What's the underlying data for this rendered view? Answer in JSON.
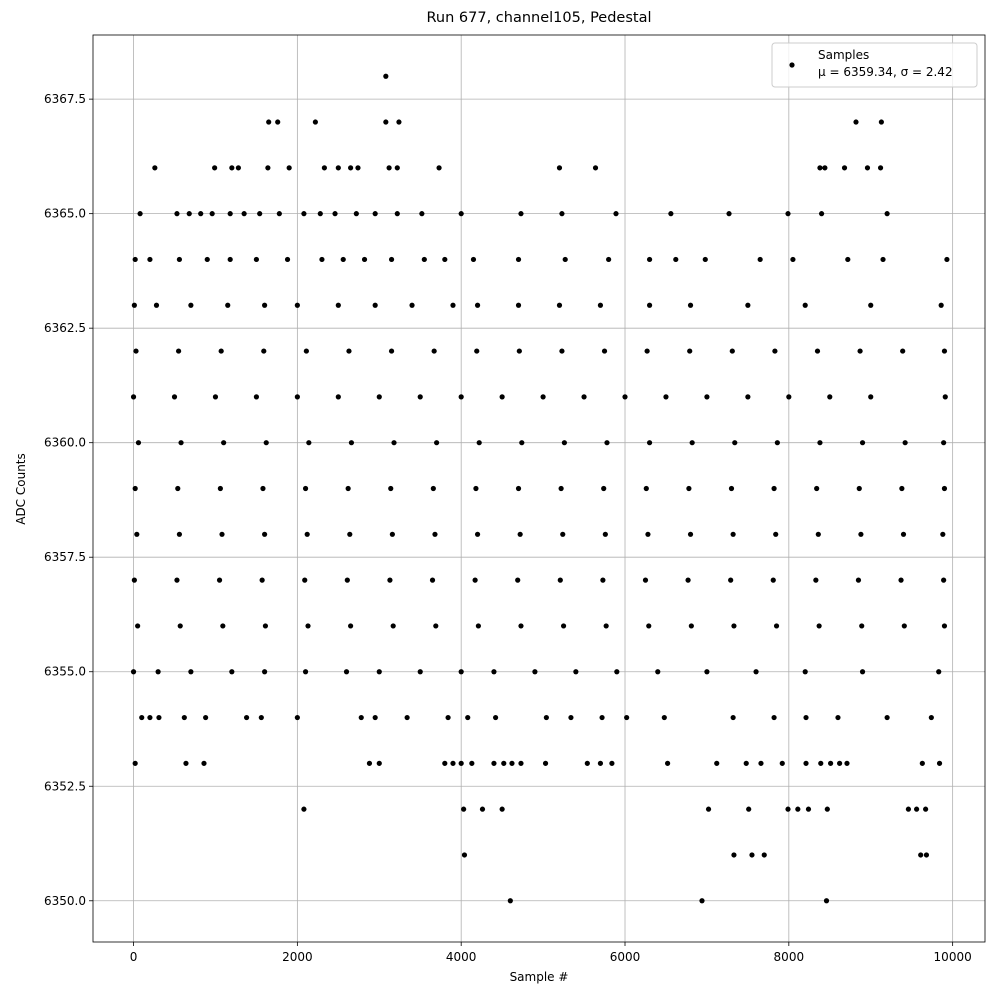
{
  "chart_data": {
    "type": "scatter",
    "title": "Run 677, channel105, Pedestal",
    "x_label": "Sample #",
    "y_label": "ADC Counts",
    "grid": true,
    "legend_position": "upper right",
    "xlim": [
      -495,
      10395
    ],
    "ylim": [
      6349.1,
      6368.9
    ],
    "xticks": [
      0,
      2000,
      4000,
      6000,
      8000,
      10000
    ],
    "yticks": [
      {
        "value": 6350,
        "label": "6350.0"
      },
      {
        "value": 6352.5,
        "label": "6352.5"
      },
      {
        "value": 6355,
        "label": "6355.0"
      },
      {
        "value": 6357.5,
        "label": "6357.5"
      },
      {
        "value": 6360,
        "label": "6360.0"
      },
      {
        "value": 6362.5,
        "label": "6362.5"
      },
      {
        "value": 6365,
        "label": "6365.0"
      },
      {
        "value": 6367.5,
        "label": "6367.5"
      }
    ],
    "series": [
      {
        "name": "Samples",
        "stats": "μ = 6359.34, σ = 2.42",
        "color": "#000000",
        "x": [
          3080,
          1650,
          1760,
          2220,
          3080,
          3240,
          8820,
          9130,
          260,
          990,
          1200,
          1280,
          1640,
          1900,
          2330,
          2500,
          2650,
          2740,
          3120,
          3220,
          3730,
          5200,
          5640,
          8380,
          8440,
          8680,
          8960,
          9120,
          80,
          530,
          680,
          820,
          960,
          1180,
          1350,
          1540,
          1780,
          2080,
          2280,
          2460,
          2720,
          2950,
          3220,
          3520,
          4000,
          4730,
          5230,
          5890,
          6560,
          7270,
          7990,
          8400,
          9200,
          20,
          200,
          560,
          900,
          1180,
          1500,
          1880,
          2300,
          2560,
          2820,
          3150,
          3550,
          3800,
          4150,
          4700,
          5270,
          5800,
          6300,
          6620,
          6980,
          7650,
          8050,
          8720,
          9150,
          9930,
          10,
          280,
          700,
          1150,
          1600,
          2000,
          2500,
          2950,
          3400,
          3900,
          4200,
          4700,
          5200,
          5700,
          6300,
          6800,
          7500,
          8200,
          9000,
          9860,
          30,
          550,
          1070,
          1590,
          2110,
          2630,
          3150,
          3670,
          4190,
          4710,
          5230,
          5750,
          6270,
          6790,
          7310,
          7830,
          8350,
          8870,
          9390,
          9900,
          0,
          500,
          1000,
          1500,
          2000,
          2500,
          3000,
          3500,
          4000,
          4500,
          5000,
          5500,
          6000,
          6500,
          7000,
          7500,
          8000,
          8500,
          9000,
          9910,
          60,
          580,
          1100,
          1620,
          2140,
          2660,
          3180,
          3700,
          4220,
          4740,
          5260,
          5780,
          6300,
          6820,
          7340,
          7860,
          8380,
          8900,
          9420,
          9890,
          20,
          540,
          1060,
          1580,
          2100,
          2620,
          3140,
          3660,
          4180,
          4700,
          5220,
          5740,
          6260,
          6780,
          7300,
          7820,
          8340,
          8860,
          9380,
          9900,
          40,
          560,
          1080,
          1600,
          2120,
          2640,
          3160,
          3680,
          4200,
          4720,
          5240,
          5760,
          6280,
          6800,
          7320,
          7840,
          8360,
          8880,
          9400,
          9880,
          10,
          530,
          1050,
          1570,
          2090,
          2610,
          3130,
          3650,
          4170,
          4690,
          5210,
          5730,
          6250,
          6770,
          7290,
          7810,
          8330,
          8850,
          9370,
          9890,
          50,
          570,
          1090,
          1610,
          2130,
          2650,
          3170,
          3690,
          4210,
          4730,
          5250,
          5770,
          6290,
          6810,
          7330,
          7850,
          8370,
          8890,
          9410,
          9900,
          0,
          300,
          700,
          1200,
          1600,
          2100,
          2600,
          3000,
          3500,
          4000,
          4400,
          4900,
          5400,
          5900,
          6400,
          7000,
          7600,
          8200,
          8900,
          9830,
          100,
          200,
          310,
          620,
          880,
          1380,
          1560,
          2000,
          2780,
          2950,
          3340,
          3840,
          4080,
          4420,
          5040,
          5340,
          5720,
          6020,
          6480,
          7320,
          7820,
          8210,
          8600,
          9200,
          9740,
          20,
          640,
          860,
          2880,
          3000,
          3800,
          3900,
          4000,
          4130,
          4400,
          4520,
          4620,
          4730,
          5030,
          5540,
          5700,
          5840,
          6520,
          7120,
          7480,
          7660,
          7920,
          8210,
          8390,
          8510,
          8620,
          8710,
          9630,
          9840,
          2080,
          4030,
          4260,
          4500,
          7020,
          7510,
          7990,
          8110,
          8240,
          8470,
          9460,
          9560,
          9670,
          4040,
          7330,
          7550,
          7700,
          9610,
          9680,
          4600,
          6940,
          8460
        ],
        "values": [
          6368,
          6367,
          6367,
          6367,
          6367,
          6367,
          6367,
          6367,
          6366,
          6366,
          6366,
          6366,
          6366,
          6366,
          6366,
          6366,
          6366,
          6366,
          6366,
          6366,
          6366,
          6366,
          6366,
          6366,
          6366,
          6366,
          6366,
          6366,
          6365,
          6365,
          6365,
          6365,
          6365,
          6365,
          6365,
          6365,
          6365,
          6365,
          6365,
          6365,
          6365,
          6365,
          6365,
          6365,
          6365,
          6365,
          6365,
          6365,
          6365,
          6365,
          6365,
          6365,
          6365,
          6364,
          6364,
          6364,
          6364,
          6364,
          6364,
          6364,
          6364,
          6364,
          6364,
          6364,
          6364,
          6364,
          6364,
          6364,
          6364,
          6364,
          6364,
          6364,
          6364,
          6364,
          6364,
          6364,
          6364,
          6364,
          6363,
          6363,
          6363,
          6363,
          6363,
          6363,
          6363,
          6363,
          6363,
          6363,
          6363,
          6363,
          6363,
          6363,
          6363,
          6363,
          6363,
          6363,
          6363,
          6363,
          6362,
          6362,
          6362,
          6362,
          6362,
          6362,
          6362,
          6362,
          6362,
          6362,
          6362,
          6362,
          6362,
          6362,
          6362,
          6362,
          6362,
          6362,
          6362,
          6362,
          6361,
          6361,
          6361,
          6361,
          6361,
          6361,
          6361,
          6361,
          6361,
          6361,
          6361,
          6361,
          6361,
          6361,
          6361,
          6361,
          6361,
          6361,
          6361,
          6361,
          6360,
          6360,
          6360,
          6360,
          6360,
          6360,
          6360,
          6360,
          6360,
          6360,
          6360,
          6360,
          6360,
          6360,
          6360,
          6360,
          6360,
          6360,
          6360,
          6360,
          6359,
          6359,
          6359,
          6359,
          6359,
          6359,
          6359,
          6359,
          6359,
          6359,
          6359,
          6359,
          6359,
          6359,
          6359,
          6359,
          6359,
          6359,
          6359,
          6359,
          6358,
          6358,
          6358,
          6358,
          6358,
          6358,
          6358,
          6358,
          6358,
          6358,
          6358,
          6358,
          6358,
          6358,
          6358,
          6358,
          6358,
          6358,
          6358,
          6358,
          6357,
          6357,
          6357,
          6357,
          6357,
          6357,
          6357,
          6357,
          6357,
          6357,
          6357,
          6357,
          6357,
          6357,
          6357,
          6357,
          6357,
          6357,
          6357,
          6357,
          6356,
          6356,
          6356,
          6356,
          6356,
          6356,
          6356,
          6356,
          6356,
          6356,
          6356,
          6356,
          6356,
          6356,
          6356,
          6356,
          6356,
          6356,
          6356,
          6356,
          6355,
          6355,
          6355,
          6355,
          6355,
          6355,
          6355,
          6355,
          6355,
          6355,
          6355,
          6355,
          6355,
          6355,
          6355,
          6355,
          6355,
          6355,
          6355,
          6355,
          6354,
          6354,
          6354,
          6354,
          6354,
          6354,
          6354,
          6354,
          6354,
          6354,
          6354,
          6354,
          6354,
          6354,
          6354,
          6354,
          6354,
          6354,
          6354,
          6354,
          6354,
          6354,
          6354,
          6354,
          6354,
          6353,
          6353,
          6353,
          6353,
          6353,
          6353,
          6353,
          6353,
          6353,
          6353,
          6353,
          6353,
          6353,
          6353,
          6353,
          6353,
          6353,
          6353,
          6353,
          6353,
          6353,
          6353,
          6353,
          6353,
          6353,
          6353,
          6353,
          6353,
          6353,
          6352,
          6352,
          6352,
          6352,
          6352,
          6352,
          6352,
          6352,
          6352,
          6352,
          6352,
          6352,
          6352,
          6351,
          6351,
          6351,
          6351,
          6351,
          6351,
          6350,
          6350,
          6350
        ]
      }
    ]
  }
}
